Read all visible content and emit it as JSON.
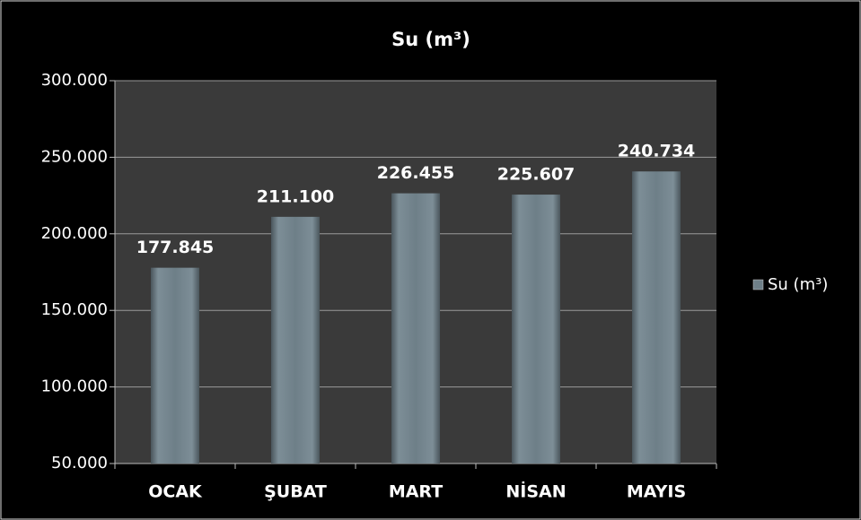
{
  "chart_data": {
    "type": "bar",
    "title": "Su (m³)",
    "categories": [
      "OCAK",
      "ŞUBAT",
      "MART",
      "NİSAN",
      "MAYIS"
    ],
    "series": [
      {
        "name": "Su (m³)",
        "color": "#6e7f88",
        "values": [
          177845,
          211100,
          226455,
          225607,
          240734
        ],
        "value_labels": [
          "177.845",
          "211.100",
          "226.455",
          "225.607",
          "240.734"
        ]
      }
    ],
    "ylim": [
      50000,
      300000
    ],
    "yticks": [
      {
        "value": 50000,
        "label": "50.000"
      },
      {
        "value": 100000,
        "label": "100.000"
      },
      {
        "value": 150000,
        "label": "150.000"
      },
      {
        "value": 200000,
        "label": "200.000"
      },
      {
        "value": 250000,
        "label": "250.000"
      },
      {
        "value": 300000,
        "label": "300.000"
      }
    ],
    "grid": true,
    "legend": "right"
  }
}
